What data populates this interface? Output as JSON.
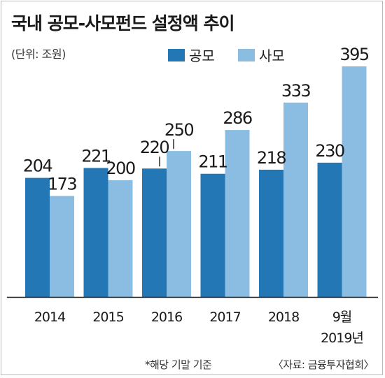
{
  "chart_data": {
    "type": "bar",
    "title": "국내 공모-사모펀드 설정액 추이",
    "unit_label": "(단위: 조원)",
    "categories": [
      "2014",
      "2015",
      "2016",
      "2017",
      "2018",
      "9월 2019년"
    ],
    "category_lines": [
      [
        "2014"
      ],
      [
        "2015"
      ],
      [
        "2016"
      ],
      [
        "2017"
      ],
      [
        "2018"
      ],
      [
        "9월",
        "2019년"
      ]
    ],
    "series": [
      {
        "name": "공모",
        "color": "#2377b5",
        "values": [
          204,
          221,
          220,
          211,
          218,
          230
        ]
      },
      {
        "name": "사모",
        "color": "#8bbde3",
        "values": [
          173,
          200,
          250,
          286,
          333,
          395
        ]
      }
    ],
    "ylim": [
      0,
      400
    ],
    "grid": false,
    "legend_position": "top-right",
    "footnote": "*해당 기말 기준",
    "source": "〈자료: 금융투자협회〉"
  }
}
